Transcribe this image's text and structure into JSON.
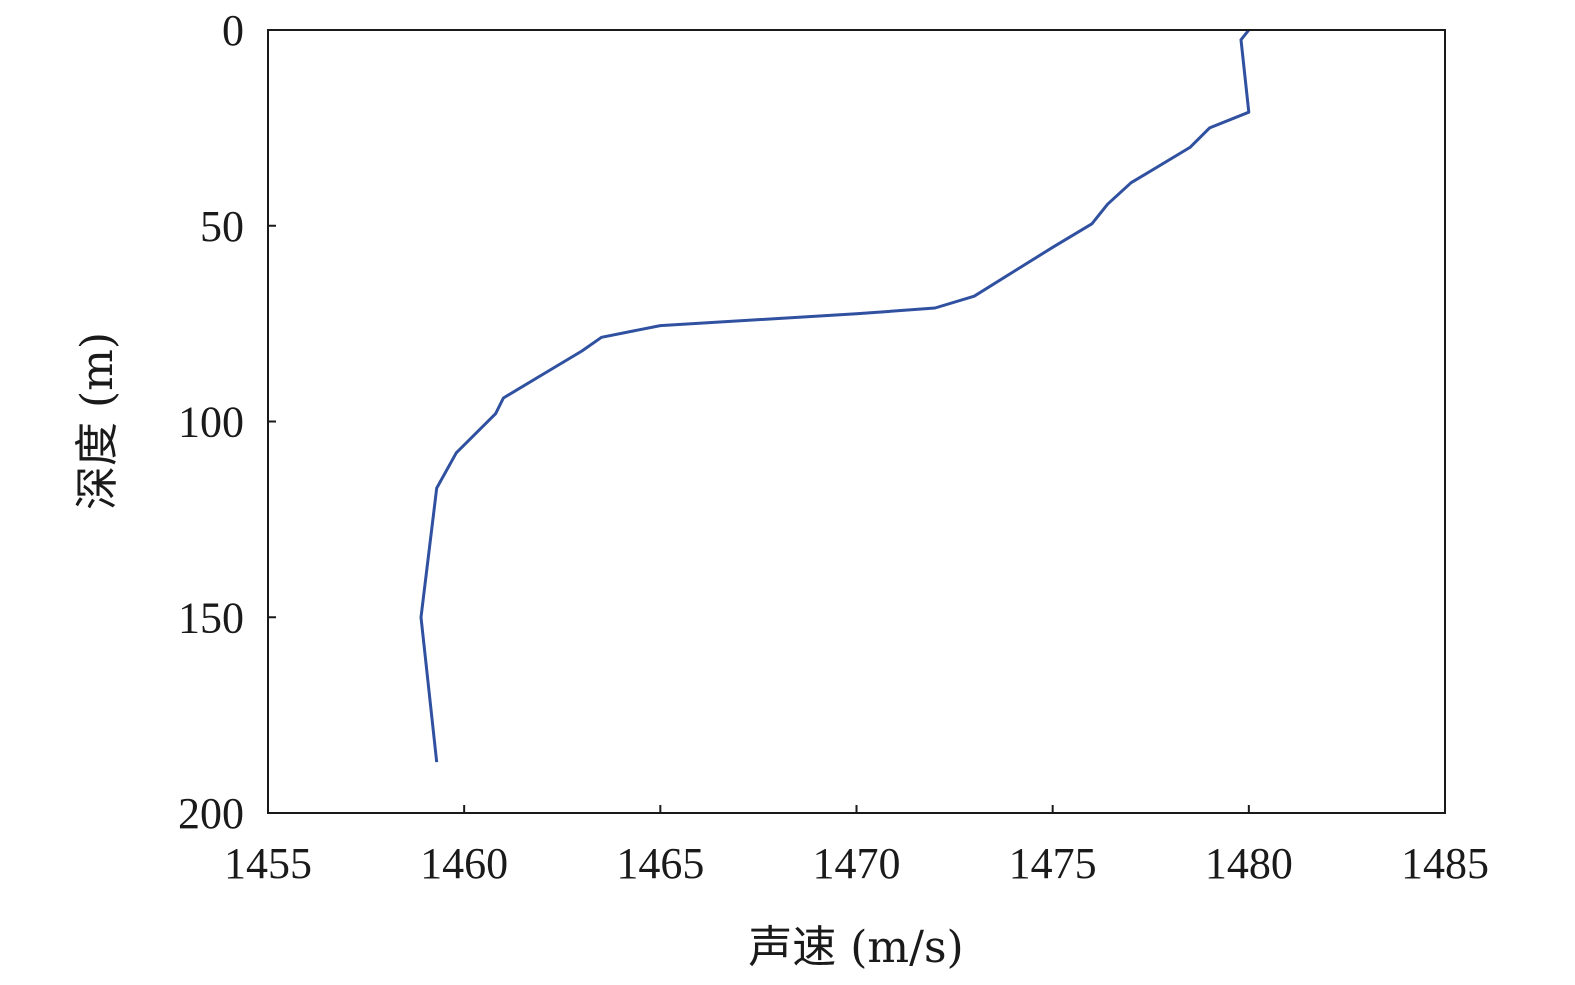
{
  "chart_data": {
    "type": "line",
    "title": "",
    "xlabel": "声速 (m/s)",
    "ylabel": "深度 (m)",
    "xlim": [
      1455,
      1485
    ],
    "ylim": [
      0,
      200
    ],
    "y_inverted": true,
    "x_ticks": [
      "1455",
      "1460",
      "1465",
      "1470",
      "1475",
      "1480",
      "1485"
    ],
    "y_ticks": [
      "0",
      "50",
      "100",
      "150",
      "200"
    ],
    "grid": false,
    "legend": "none",
    "series": [
      {
        "color": "#3050a0",
        "points": [
          {
            "x": 1480.0,
            "y": 0
          },
          {
            "x": 1479.8,
            "y": 2.5
          },
          {
            "x": 1480.0,
            "y": 21
          },
          {
            "x": 1479.0,
            "y": 25
          },
          {
            "x": 1478.5,
            "y": 30
          },
          {
            "x": 1477.0,
            "y": 39
          },
          {
            "x": 1476.4,
            "y": 44.5
          },
          {
            "x": 1476.0,
            "y": 49.5
          },
          {
            "x": 1475.0,
            "y": 55.5
          },
          {
            "x": 1473.0,
            "y": 68
          },
          {
            "x": 1472.0,
            "y": 71
          },
          {
            "x": 1470.0,
            "y": 72.5
          },
          {
            "x": 1465.0,
            "y": 75.5
          },
          {
            "x": 1463.5,
            "y": 78.5
          },
          {
            "x": 1463.0,
            "y": 82
          },
          {
            "x": 1462.0,
            "y": 88
          },
          {
            "x": 1461.0,
            "y": 94
          },
          {
            "x": 1460.8,
            "y": 98
          },
          {
            "x": 1459.8,
            "y": 108
          },
          {
            "x": 1459.3,
            "y": 117
          },
          {
            "x": 1458.9,
            "y": 150
          },
          {
            "x": 1459.3,
            "y": 187
          }
        ]
      }
    ]
  }
}
